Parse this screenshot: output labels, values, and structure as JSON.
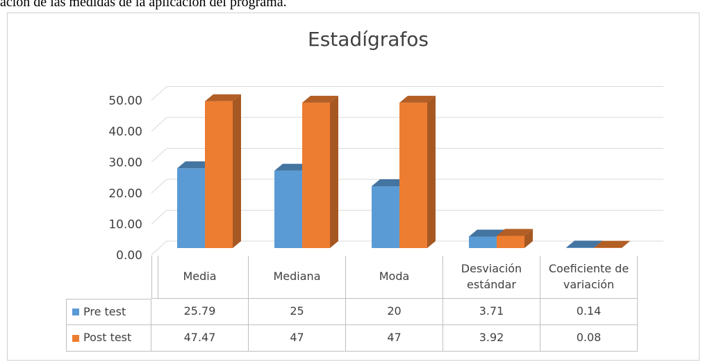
{
  "caption": "ación de las medidas de la aplicación del programa.",
  "chart_data": {
    "type": "bar",
    "title": "Estadígrafos",
    "categories": [
      "Media",
      "Mediana",
      "Moda",
      "Desviación estándar",
      "Coeficiente de variación"
    ],
    "series": [
      {
        "name": "Pre test",
        "color": "#5b9bd5",
        "values": [
          25.79,
          25,
          20,
          3.71,
          0.14
        ]
      },
      {
        "name": "Post test",
        "color": "#ed7d31",
        "values": [
          47.47,
          47,
          47,
          3.92,
          0.08
        ]
      }
    ],
    "ylim": [
      0,
      50
    ],
    "yticks": [
      {
        "value": 0,
        "label": "0.00"
      },
      {
        "value": 10,
        "label": "10.00"
      },
      {
        "value": 20,
        "label": "20.00"
      },
      {
        "value": 30,
        "label": "30.00"
      },
      {
        "value": 40,
        "label": "40.00"
      },
      {
        "value": 50,
        "label": "50.00"
      }
    ],
    "grid": true,
    "data_table": true
  }
}
